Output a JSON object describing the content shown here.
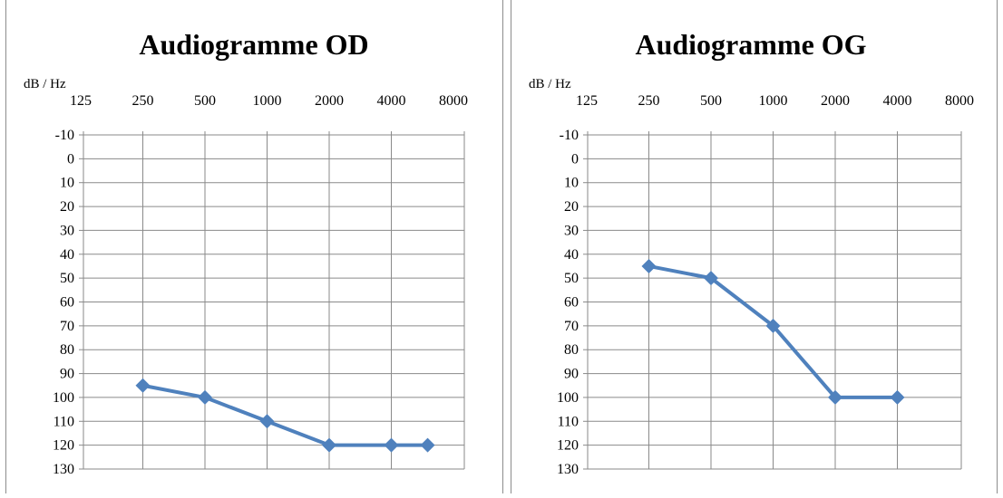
{
  "chart_data": [
    {
      "type": "line",
      "title": "Audiogramme OD",
      "unit_label": "dB / Hz",
      "x_tick_labels": [
        "125",
        "250",
        "500",
        "1000",
        "2000",
        "4000",
        "8000"
      ],
      "y_tick_labels": [
        "-10",
        "0",
        "10",
        "20",
        "30",
        "40",
        "50",
        "60",
        "70",
        "80",
        "90",
        "100",
        "110",
        "120",
        "130"
      ],
      "ylim": [
        -10,
        130
      ],
      "y_inverted": true,
      "grid": true,
      "series": [
        {
          "color": "#4f81bd",
          "marker": "diamond",
          "points": [
            {
              "x": "250",
              "y": 95
            },
            {
              "x": "500",
              "y": 100
            },
            {
              "x": "1000",
              "y": 110
            },
            {
              "x": "2000",
              "y": 120
            },
            {
              "x": "4000",
              "y": 120
            },
            {
              "x": "6000",
              "y": 120
            }
          ]
        }
      ]
    },
    {
      "type": "line",
      "title": "Audiogramme OG",
      "unit_label": "dB / Hz",
      "x_tick_labels": [
        "125",
        "250",
        "500",
        "1000",
        "2000",
        "4000",
        "8000"
      ],
      "y_tick_labels": [
        "-10",
        "0",
        "10",
        "20",
        "30",
        "40",
        "50",
        "60",
        "70",
        "80",
        "90",
        "100",
        "110",
        "120",
        "130"
      ],
      "ylim": [
        -10,
        130
      ],
      "y_inverted": true,
      "grid": true,
      "series": [
        {
          "color": "#4f81bd",
          "marker": "diamond",
          "points": [
            {
              "x": "250",
              "y": 45
            },
            {
              "x": "500",
              "y": 50
            },
            {
              "x": "1000",
              "y": 70
            },
            {
              "x": "2000",
              "y": 100
            },
            {
              "x": "4000",
              "y": 100
            }
          ]
        }
      ]
    }
  ]
}
